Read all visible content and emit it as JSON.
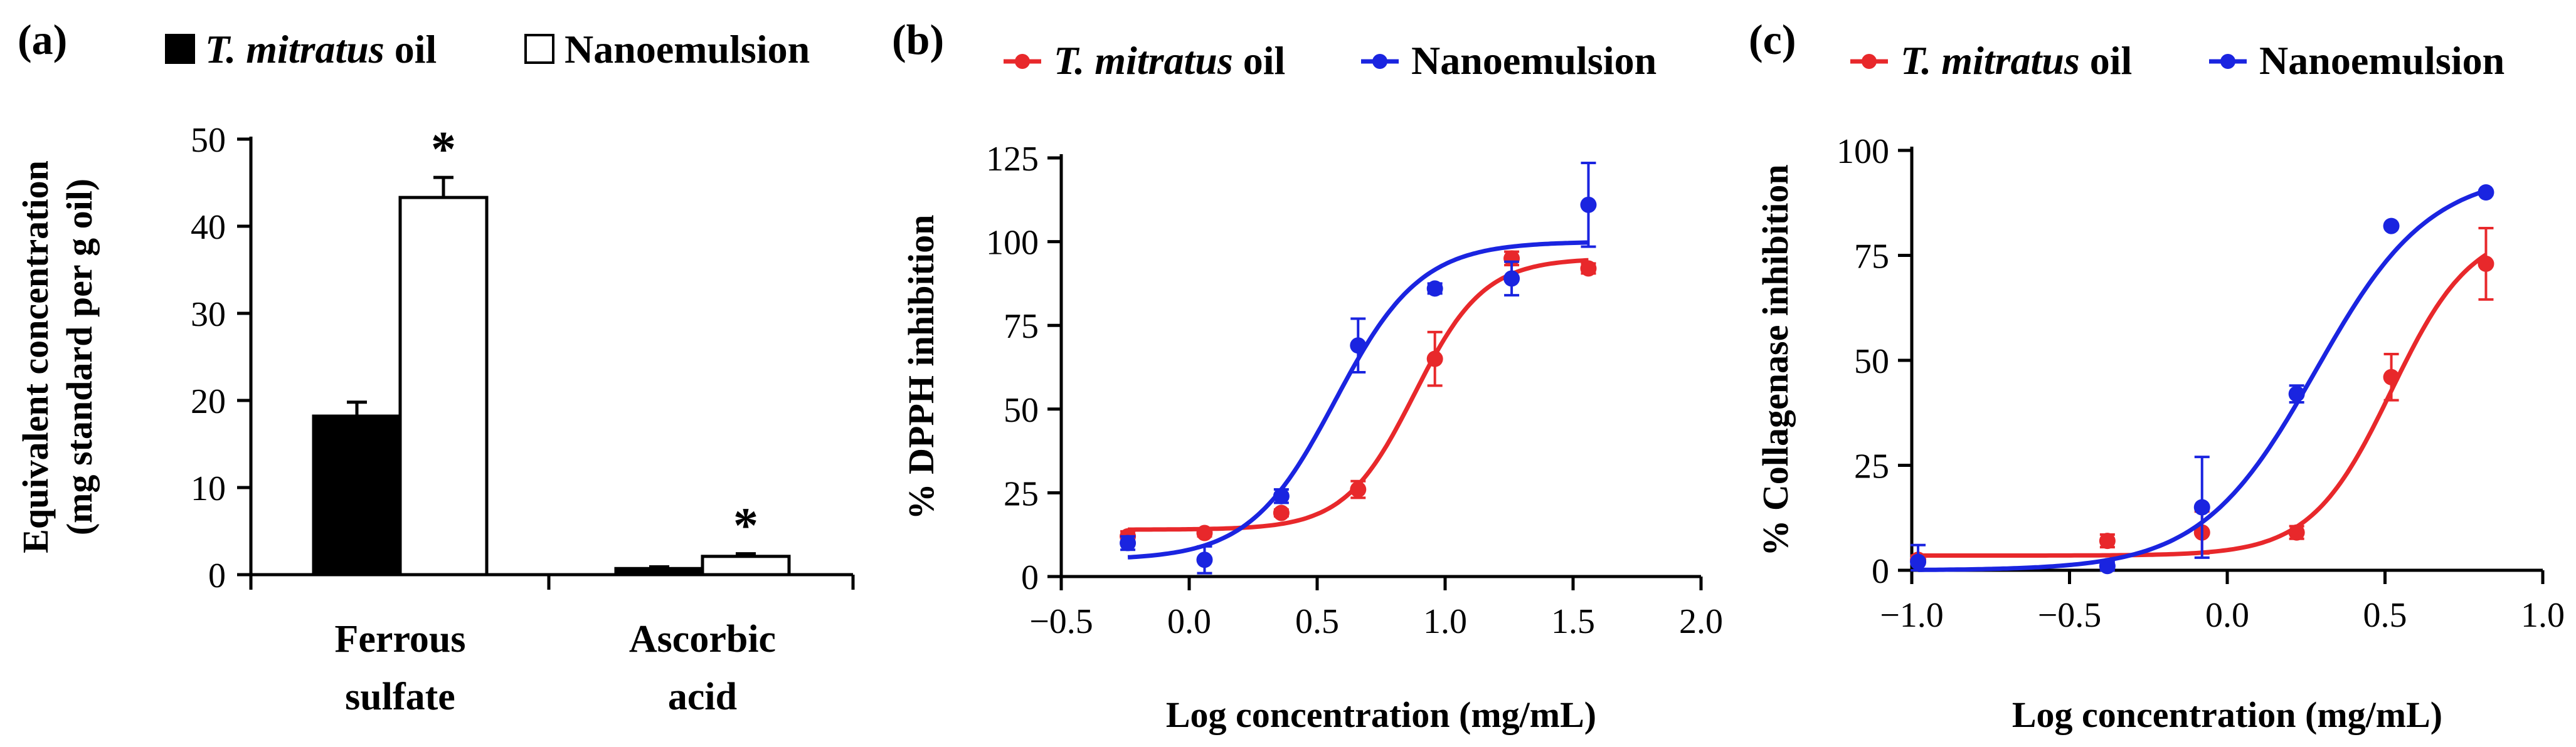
{
  "chart_data": [
    {
      "panel": "(a)",
      "type": "bar",
      "categories": [
        [
          "Ferrous",
          "sulfate"
        ],
        [
          "Ascorbic",
          "acid"
        ]
      ],
      "series": [
        {
          "name": "T. mitratus oil",
          "name_italic": "T. mitratus",
          "name_rest": " oil",
          "fill": "#000000",
          "values": [
            18.2,
            0.7
          ],
          "errors": [
            1.6,
            0.2
          ]
        },
        {
          "name": "Nanoemulsion",
          "fill": "#ffffff",
          "values": [
            43.3,
            2.1
          ],
          "errors": [
            2.3,
            0.3
          ]
        }
      ],
      "significance": [
        "*",
        "*"
      ],
      "ylabel": [
        "Equivalent concentration",
        "(mg standard per g oil)"
      ],
      "ylim": [
        0,
        50
      ],
      "yticks": [
        "0",
        "10",
        "20",
        "30",
        "40",
        "50"
      ]
    },
    {
      "panel": "(b)",
      "type": "scatter",
      "xlabel": "Log concentration (mg/mL)",
      "ylabel": "% DPPH inhibition",
      "xlim": [
        -0.5,
        2.0
      ],
      "ylim": [
        0,
        125
      ],
      "xticks": [
        "−0.5",
        "0.0",
        "0.5",
        "1.0",
        "1.5",
        "2.0"
      ],
      "yticks": [
        "0",
        "25",
        "50",
        "75",
        "100",
        "125"
      ],
      "series": [
        {
          "name": "T. mitratus oil",
          "name_italic": "T. mitratus",
          "name_rest": " oil",
          "color": "#e8282b",
          "points": [
            {
              "x": -0.24,
              "y": 12,
              "err": 1.5
            },
            {
              "x": 0.06,
              "y": 13,
              "err": 1
            },
            {
              "x": 0.36,
              "y": 19,
              "err": 1
            },
            {
              "x": 0.66,
              "y": 26,
              "err": 2.5
            },
            {
              "x": 0.96,
              "y": 65,
              "err": 8
            },
            {
              "x": 1.26,
              "y": 95,
              "err": 2
            },
            {
              "x": 1.56,
              "y": 92,
              "err": 1.5
            }
          ],
          "fit": {
            "bottom": 14,
            "top": 95,
            "logEC50": 0.88,
            "hill": 3.2
          }
        },
        {
          "name": "Nanoemulsion",
          "color": "#1a24e0",
          "points": [
            {
              "x": -0.24,
              "y": 10,
              "err": 2
            },
            {
              "x": 0.06,
              "y": 5,
              "err": 4
            },
            {
              "x": 0.36,
              "y": 24,
              "err": 2
            },
            {
              "x": 0.66,
              "y": 69,
              "err": 8
            },
            {
              "x": 0.96,
              "y": 86,
              "err": 1.5
            },
            {
              "x": 1.26,
              "y": 89,
              "err": 5
            },
            {
              "x": 1.56,
              "y": 111,
              "err": 12.5
            }
          ],
          "fit": {
            "bottom": 5,
            "top": 100,
            "logEC50": 0.57,
            "hill": 2.6
          }
        }
      ]
    },
    {
      "panel": "(c)",
      "type": "scatter",
      "xlabel": "Log concentration (mg/mL)",
      "ylabel": "% Collagenase inhibition",
      "xlim": [
        -1.0,
        1.0
      ],
      "ylim": [
        0,
        100
      ],
      "xticks": [
        "−1.0",
        "−0.5",
        "0.0",
        "0.5",
        "1.0"
      ],
      "yticks": [
        "0",
        "25",
        "50",
        "75",
        "100"
      ],
      "series": [
        {
          "name": "T. mitratus oil",
          "name_italic": "T. mitratus",
          "name_rest": " oil",
          "color": "#e8282b",
          "points": [
            {
              "x": -0.98,
              "y": 2.5,
              "err": 1
            },
            {
              "x": -0.38,
              "y": 7,
              "err": 1.5
            },
            {
              "x": -0.08,
              "y": 9,
              "err": 5
            },
            {
              "x": 0.22,
              "y": 9,
              "err": 1.5
            },
            {
              "x": 0.52,
              "y": 46,
              "err": 5.5
            },
            {
              "x": 0.82,
              "y": 73,
              "err": 8.5
            }
          ],
          "fit": {
            "bottom": 3.5,
            "top": 82,
            "logEC50": 0.52,
            "hill": 3.4
          }
        },
        {
          "name": "Nanoemulsion",
          "color": "#1a24e0",
          "points": [
            {
              "x": -0.98,
              "y": 2,
              "err": 4
            },
            {
              "x": -0.38,
              "y": 1,
              "err": 1
            },
            {
              "x": -0.08,
              "y": 15,
              "err": 12
            },
            {
              "x": 0.22,
              "y": 42,
              "err": 2
            },
            {
              "x": 0.52,
              "y": 82,
              "err": 0.5
            },
            {
              "x": 0.82,
              "y": 90,
              "err": 0.5
            }
          ],
          "fit": {
            "bottom": 0,
            "top": 95,
            "logEC50": 0.28,
            "hill": 2.4
          }
        }
      ]
    }
  ]
}
